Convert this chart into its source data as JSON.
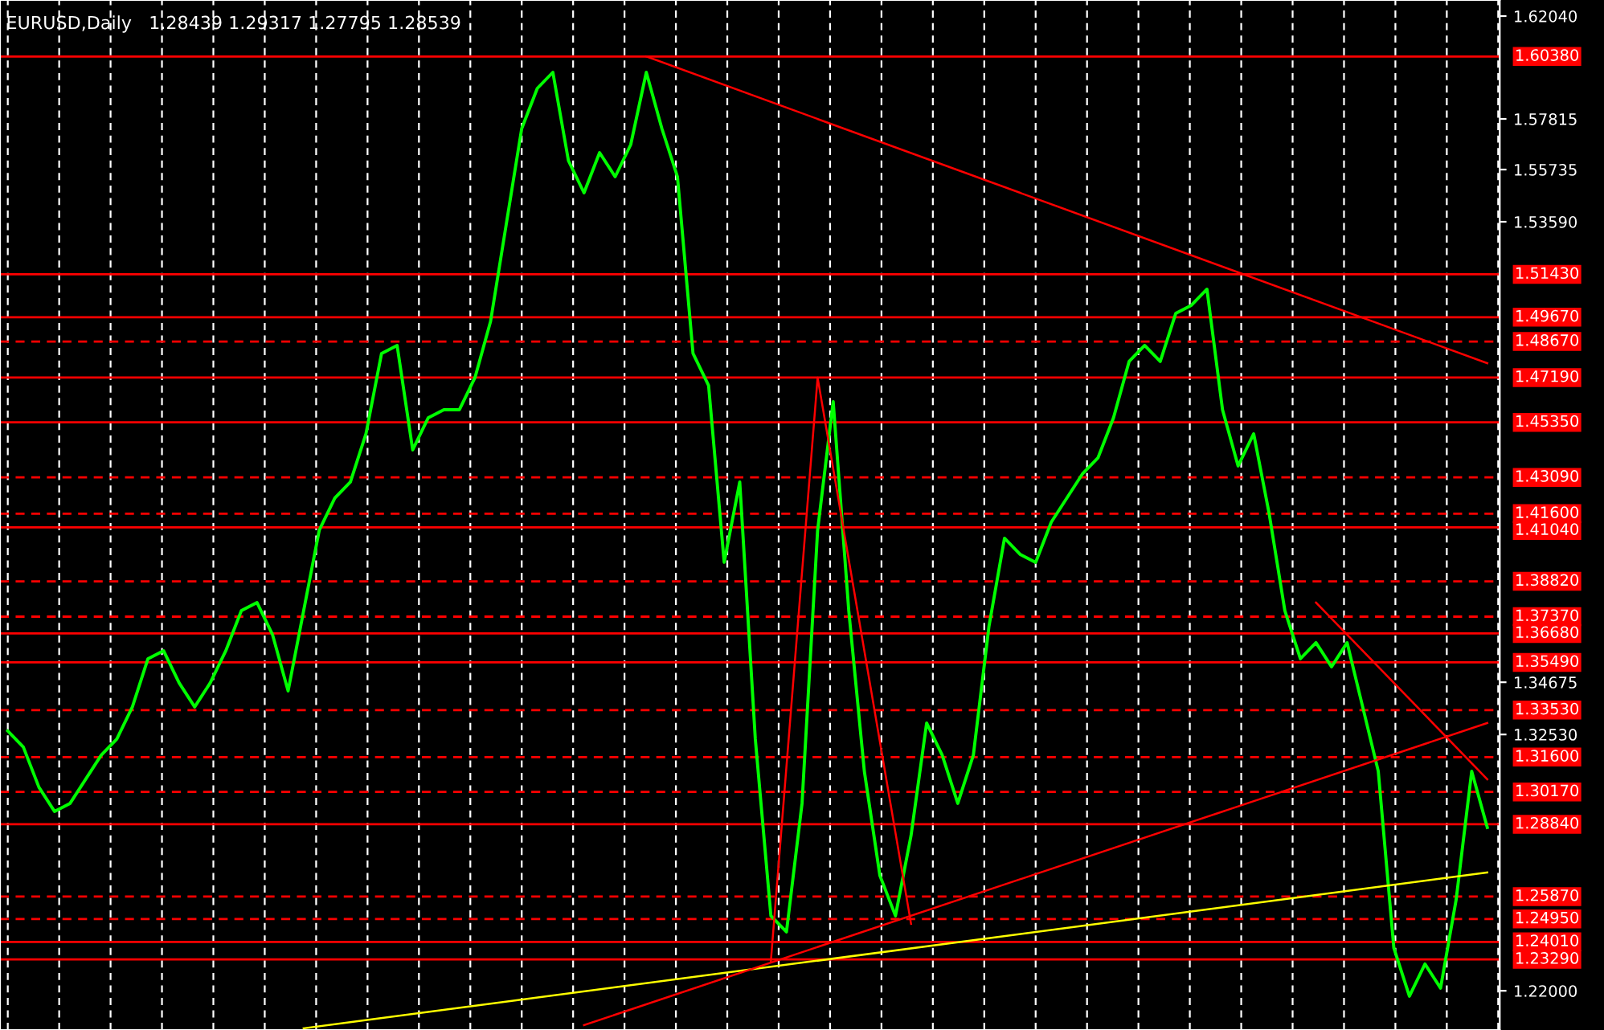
{
  "chart_data": {
    "type": "line",
    "title": "EURUSD,Daily",
    "subtitle": "1.28439 1.29317 1.27795 1.28539",
    "categories": [
      null,
      null,
      null,
      null,
      null,
      null,
      null,
      null,
      null,
      null,
      null,
      null,
      null,
      null,
      null,
      null,
      null,
      null,
      null,
      null,
      null,
      null,
      null,
      null,
      null,
      null,
      null,
      null,
      null,
      null,
      null,
      null,
      null,
      null,
      null,
      null,
      null,
      null,
      null,
      null,
      null,
      null,
      null,
      null,
      null,
      null,
      null,
      null,
      null,
      null,
      null,
      null,
      null,
      null,
      null,
      null,
      null,
      null,
      null,
      null,
      null,
      null,
      null,
      null,
      null,
      null,
      null,
      null,
      null,
      null,
      null,
      null,
      null,
      null,
      null,
      null,
      null,
      null,
      null,
      null,
      null,
      null,
      null,
      null,
      null,
      null,
      null,
      null,
      null,
      null,
      null,
      null,
      null,
      null,
      null,
      null
    ],
    "series": [
      {
        "color": "#00ff00",
        "values": [
          1.3267,
          1.3201,
          1.3036,
          1.2937,
          1.297,
          1.3069,
          1.3168,
          1.3234,
          1.3366,
          1.3564,
          1.3597,
          1.3465,
          1.3366,
          1.3465,
          1.3597,
          1.3762,
          1.3795,
          1.3663,
          1.3432,
          1.3762,
          1.4092,
          1.4224,
          1.429,
          1.4488,
          1.4818,
          1.4851,
          1.4422,
          1.4554,
          1.4587,
          1.4587,
          1.4719,
          1.495,
          1.5346,
          1.5742,
          1.5907,
          1.5973,
          1.561,
          1.5478,
          1.5643,
          1.5544,
          1.5676,
          1.5973,
          1.5742,
          1.5544,
          1.4818,
          1.4686,
          1.396,
          1.429,
          1.3234,
          1.2508,
          1.2442,
          1.297,
          1.4092,
          1.462,
          1.3762,
          1.3102,
          1.2673,
          1.2508,
          1.2838,
          1.33,
          1.3168,
          1.297,
          1.3168,
          1.3696,
          1.4059,
          1.3993,
          1.396,
          1.4125,
          1.4224,
          1.4323,
          1.4389,
          1.4554,
          1.4785,
          1.4851,
          1.4785,
          1.4983,
          1.5016,
          1.5082,
          1.4587,
          1.4356,
          1.4488,
          1.4158,
          1.3762,
          1.3564,
          1.363,
          1.3531,
          1.363,
          1.3366,
          1.3102,
          1.2376,
          1.2178,
          1.231,
          1.2211,
          1.2574,
          1.3102,
          1.2871
        ]
      },
      {
        "color": "#ff0000",
        "values": [
          null,
          null,
          null,
          null,
          null,
          null,
          null,
          null,
          null,
          null,
          null,
          null,
          null,
          null,
          null,
          null,
          null,
          null,
          null,
          null,
          null,
          null,
          null,
          null,
          null,
          null,
          null,
          null,
          null,
          null,
          null,
          null,
          null,
          null,
          null,
          null,
          null,
          null,
          null,
          null,
          null,
          1.6038,
          null,
          null,
          null,
          null,
          null,
          null,
          null,
          null,
          null,
          null,
          null,
          null,
          null,
          null,
          null,
          null,
          null,
          null,
          null,
          null,
          null,
          null,
          null,
          null,
          null,
          null,
          null,
          null,
          null,
          null,
          null,
          null,
          null,
          null,
          null,
          null,
          null,
          null,
          null,
          null,
          null,
          null,
          null,
          null,
          null,
          null,
          null,
          null,
          null,
          null,
          null,
          null,
          null,
          1.4778
        ]
      },
      {
        "color": "#ffff00",
        "values": [
          null,
          null,
          null,
          null,
          null,
          null,
          null,
          null,
          null,
          null,
          null,
          null,
          null,
          null,
          null,
          null,
          null,
          null,
          null,
          1.2046,
          null,
          null,
          null,
          null,
          null,
          null,
          null,
          null,
          null,
          null,
          null,
          null,
          null,
          null,
          null,
          null,
          null,
          null,
          null,
          null,
          null,
          null,
          null,
          null,
          null,
          null,
          null,
          null,
          null,
          null,
          null,
          null,
          null,
          null,
          null,
          null,
          null,
          null,
          null,
          null,
          null,
          null,
          null,
          null,
          null,
          null,
          null,
          null,
          null,
          null,
          null,
          null,
          null,
          null,
          null,
          null,
          null,
          null,
          null,
          null,
          null,
          null,
          null,
          null,
          null,
          null,
          null,
          null,
          null,
          null,
          null,
          null,
          null,
          null,
          null,
          1.2686
        ]
      },
      {
        "color": "#ff0000",
        "values": [
          null,
          null,
          null,
          null,
          null,
          null,
          null,
          null,
          null,
          null,
          null,
          null,
          null,
          null,
          null,
          null,
          null,
          null,
          null,
          null,
          null,
          null,
          null,
          null,
          null,
          null,
          null,
          null,
          null,
          null,
          null,
          null,
          null,
          null,
          null,
          null,
          null,
          1.2059,
          null,
          null,
          null,
          null,
          null,
          null,
          null,
          null,
          null,
          null,
          null,
          null,
          null,
          null,
          null,
          null,
          null,
          null,
          null,
          null,
          null,
          null,
          null,
          null,
          null,
          null,
          null,
          null,
          null,
          null,
          null,
          null,
          null,
          null,
          null,
          null,
          null,
          null,
          null,
          null,
          null,
          null,
          null,
          null,
          null,
          null,
          null,
          null,
          null,
          null,
          null,
          null,
          null,
          null,
          null,
          null,
          null,
          1.33
        ]
      },
      {
        "color": "#ff0000",
        "values": [
          null,
          null,
          null,
          null,
          null,
          null,
          null,
          null,
          null,
          null,
          null,
          null,
          null,
          null,
          null,
          null,
          null,
          null,
          null,
          null,
          null,
          null,
          null,
          null,
          null,
          null,
          null,
          null,
          null,
          null,
          null,
          null,
          null,
          null,
          null,
          null,
          null,
          null,
          null,
          null,
          null,
          null,
          null,
          null,
          null,
          null,
          null,
          null,
          null,
          null,
          null,
          null,
          null,
          null,
          null,
          null,
          null,
          null,
          null,
          null,
          null,
          null,
          null,
          null,
          null,
          null,
          null,
          null,
          null,
          null,
          null,
          null,
          null,
          null,
          null,
          null,
          null,
          null,
          null,
          null,
          null,
          null,
          null,
          null,
          1.3795,
          null,
          null,
          null,
          null,
          null,
          null,
          null,
          null,
          null,
          null,
          1.3069
        ]
      },
      {
        "color": "#ff0000",
        "values": [
          null,
          null,
          null,
          null,
          null,
          null,
          null,
          null,
          null,
          null,
          null,
          null,
          null,
          null,
          null,
          null,
          null,
          null,
          null,
          null,
          null,
          null,
          null,
          null,
          null,
          null,
          null,
          null,
          null,
          null,
          null,
          null,
          null,
          null,
          null,
          null,
          null,
          null,
          null,
          null,
          null,
          null,
          null,
          null,
          null,
          null,
          null,
          null,
          null,
          1.2323,
          null,
          null,
          1.4719,
          null,
          null,
          null,
          null,
          null,
          1.2475,
          null,
          null,
          null,
          null,
          null,
          null,
          null,
          null,
          null,
          null,
          null,
          null,
          null,
          null,
          null,
          null,
          null,
          null,
          null,
          null,
          null,
          null,
          null,
          null,
          null,
          null,
          null,
          null,
          null,
          null,
          null,
          null,
          null,
          null,
          null,
          null,
          null
        ]
      }
    ],
    "ylim": [
      1.2039,
      1.627
    ],
    "yticks": [
      {
        "value": 1.6204,
        "label": "1.62040"
      },
      {
        "value": 1.57815,
        "label": "1.57815"
      },
      {
        "value": 1.55735,
        "label": "1.55735"
      },
      {
        "value": 1.5359,
        "label": "1.53590"
      },
      {
        "value": 1.34675,
        "label": "1.34675"
      },
      {
        "value": 1.3253,
        "label": "1.32530"
      },
      {
        "value": 1.22,
        "label": "1.22000"
      }
    ],
    "tick_labels": "y",
    "grid": "x",
    "marker": "none",
    "line_style": "solid",
    "legend": false,
    "ref_lines": [
      {
        "axis": "y",
        "value": 1.6038,
        "label": "1.60380",
        "color": "#ff0000",
        "line_style": "solid"
      },
      {
        "axis": "y",
        "value": 1.5143,
        "label": "1.51430",
        "color": "#ff0000",
        "line_style": "solid"
      },
      {
        "axis": "y",
        "value": 1.4967,
        "label": "1.49670",
        "color": "#ff0000",
        "line_style": "solid"
      },
      {
        "axis": "y",
        "value": 1.4867,
        "label": "1.48670",
        "color": "#ff0000",
        "line_style": "dashed"
      },
      {
        "axis": "y",
        "value": 1.4719,
        "label": "1.47190",
        "color": "#ff0000",
        "line_style": "solid"
      },
      {
        "axis": "y",
        "value": 1.4535,
        "label": "1.45350",
        "color": "#ff0000",
        "line_style": "solid"
      },
      {
        "axis": "y",
        "value": 1.4309,
        "label": "1.43090",
        "color": "#ff0000",
        "line_style": "dashed"
      },
      {
        "axis": "y",
        "value": 1.416,
        "label": "1.41600",
        "color": "#ff0000",
        "line_style": "dashed"
      },
      {
        "axis": "y",
        "value": 1.4104,
        "label": "1.41040",
        "color": "#ff0000",
        "line_style": "solid"
      },
      {
        "axis": "y",
        "value": 1.3882,
        "label": "1.38820",
        "color": "#ff0000",
        "line_style": "dashed"
      },
      {
        "axis": "y",
        "value": 1.3737,
        "label": "1.37370",
        "color": "#ff0000",
        "line_style": "dashed"
      },
      {
        "axis": "y",
        "value": 1.3668,
        "label": "1.36680",
        "color": "#ff0000",
        "line_style": "solid"
      },
      {
        "axis": "y",
        "value": 1.3549,
        "label": "1.35490",
        "color": "#ff0000",
        "line_style": "solid"
      },
      {
        "axis": "y",
        "value": 1.3353,
        "label": "1.33530",
        "color": "#ff0000",
        "line_style": "dashed"
      },
      {
        "axis": "y",
        "value": 1.316,
        "label": "1.31600",
        "color": "#ff0000",
        "line_style": "dashed"
      },
      {
        "axis": "y",
        "value": 1.3017,
        "label": "1.30170",
        "color": "#ff0000",
        "line_style": "dashed"
      },
      {
        "axis": "y",
        "value": 1.2884,
        "label": "1.28840",
        "color": "#ff0000",
        "line_style": "solid"
      },
      {
        "axis": "y",
        "value": 1.2587,
        "label": "1.25870",
        "color": "#ff0000",
        "line_style": "dashed"
      },
      {
        "axis": "y",
        "value": 1.2495,
        "label": "1.24950",
        "color": "#ff0000",
        "line_style": "dashed"
      },
      {
        "axis": "y",
        "value": 1.2401,
        "label": "1.24010",
        "color": "#ff0000",
        "line_style": "solid"
      },
      {
        "axis": "y",
        "value": 1.2329,
        "label": "1.23290",
        "color": "#ff0000",
        "line_style": "solid"
      }
    ]
  }
}
